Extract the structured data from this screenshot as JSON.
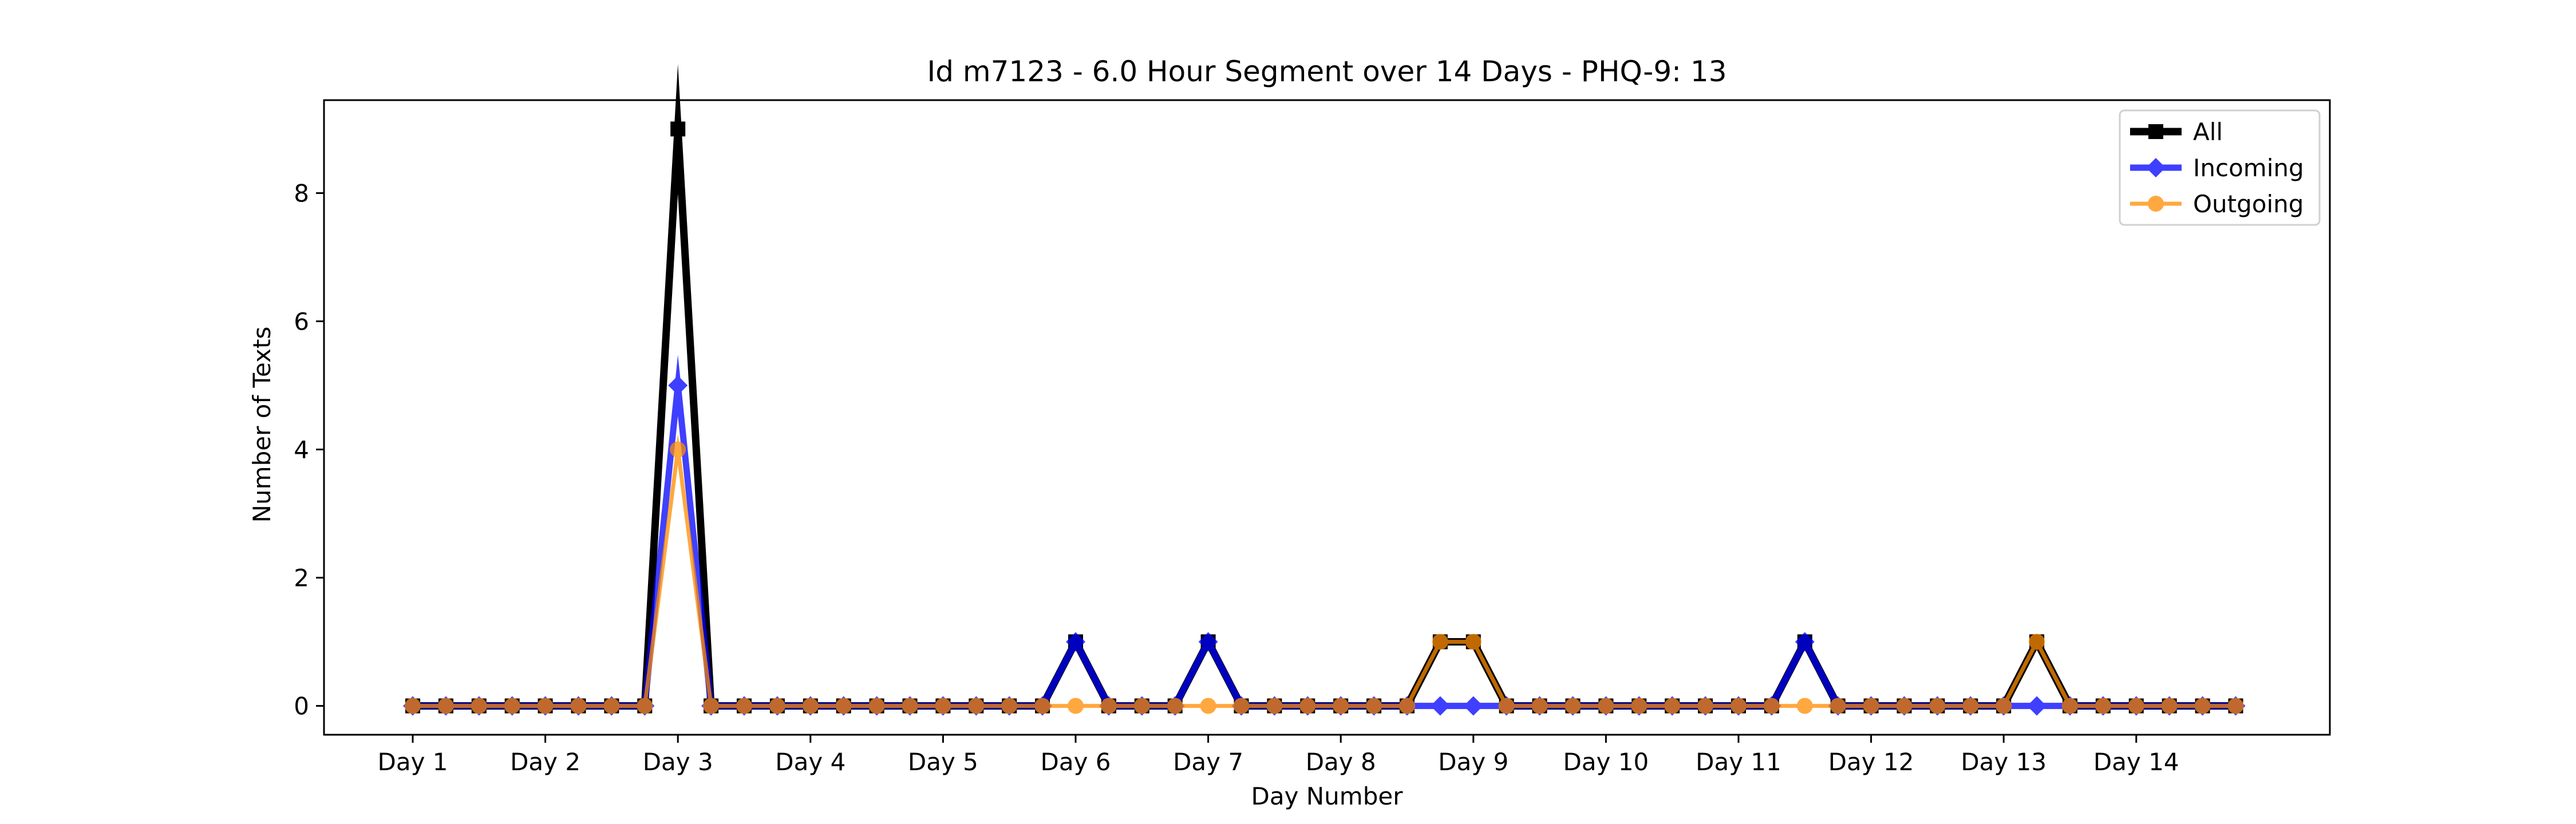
{
  "chart_data": {
    "type": "line",
    "title": "Id m7123 - 6.0 Hour Segment over 14 Days - PHQ-9: 13",
    "xlabel": "Day Number",
    "ylabel": "Number of Texts",
    "x_ticks": [
      "Day 1",
      "Day 2",
      "Day 3",
      "Day 4",
      "Day 5",
      "Day 6",
      "Day 7",
      "Day 8",
      "Day 9",
      "Day 10",
      "Day 11",
      "Day 12",
      "Day 13",
      "Day 14"
    ],
    "y_ticks": [
      "0",
      "2",
      "4",
      "6",
      "8"
    ],
    "xlim": [
      0,
      56
    ],
    "ylim": [
      -0.45,
      9.45
    ],
    "grid": false,
    "legend_position": "top-right",
    "series": [
      {
        "name": "All",
        "color": "#000000",
        "marker": "square",
        "values": [
          0,
          0,
          0,
          0,
          0,
          0,
          0,
          0,
          9,
          0,
          0,
          0,
          0,
          0,
          0,
          0,
          0,
          0,
          0,
          0,
          1,
          0,
          0,
          0,
          1,
          0,
          0,
          0,
          0,
          0,
          0,
          1,
          1,
          0,
          0,
          0,
          0,
          0,
          0,
          0,
          0,
          0,
          1,
          0,
          0,
          0,
          0,
          0,
          0,
          1,
          0,
          0,
          0,
          0,
          0,
          0
        ]
      },
      {
        "name": "Incoming",
        "color": "#0000ff",
        "marker": "diamond",
        "values": [
          0,
          0,
          0,
          0,
          0,
          0,
          0,
          0,
          5,
          0,
          0,
          0,
          0,
          0,
          0,
          0,
          0,
          0,
          0,
          0,
          1,
          0,
          0,
          0,
          1,
          0,
          0,
          0,
          0,
          0,
          0,
          0,
          0,
          0,
          0,
          0,
          0,
          0,
          0,
          0,
          0,
          0,
          1,
          0,
          0,
          0,
          0,
          0,
          0,
          0,
          0,
          0,
          0,
          0,
          0,
          0
        ]
      },
      {
        "name": "Outgoing",
        "color": "#ff8c00",
        "marker": "circle",
        "values": [
          0,
          0,
          0,
          0,
          0,
          0,
          0,
          0,
          4,
          0,
          0,
          0,
          0,
          0,
          0,
          0,
          0,
          0,
          0,
          0,
          0,
          0,
          0,
          0,
          0,
          0,
          0,
          0,
          0,
          0,
          0,
          1,
          1,
          0,
          0,
          0,
          0,
          0,
          0,
          0,
          0,
          0,
          0,
          0,
          0,
          0,
          0,
          0,
          0,
          1,
          0,
          0,
          0,
          0,
          0,
          0
        ]
      }
    ]
  }
}
